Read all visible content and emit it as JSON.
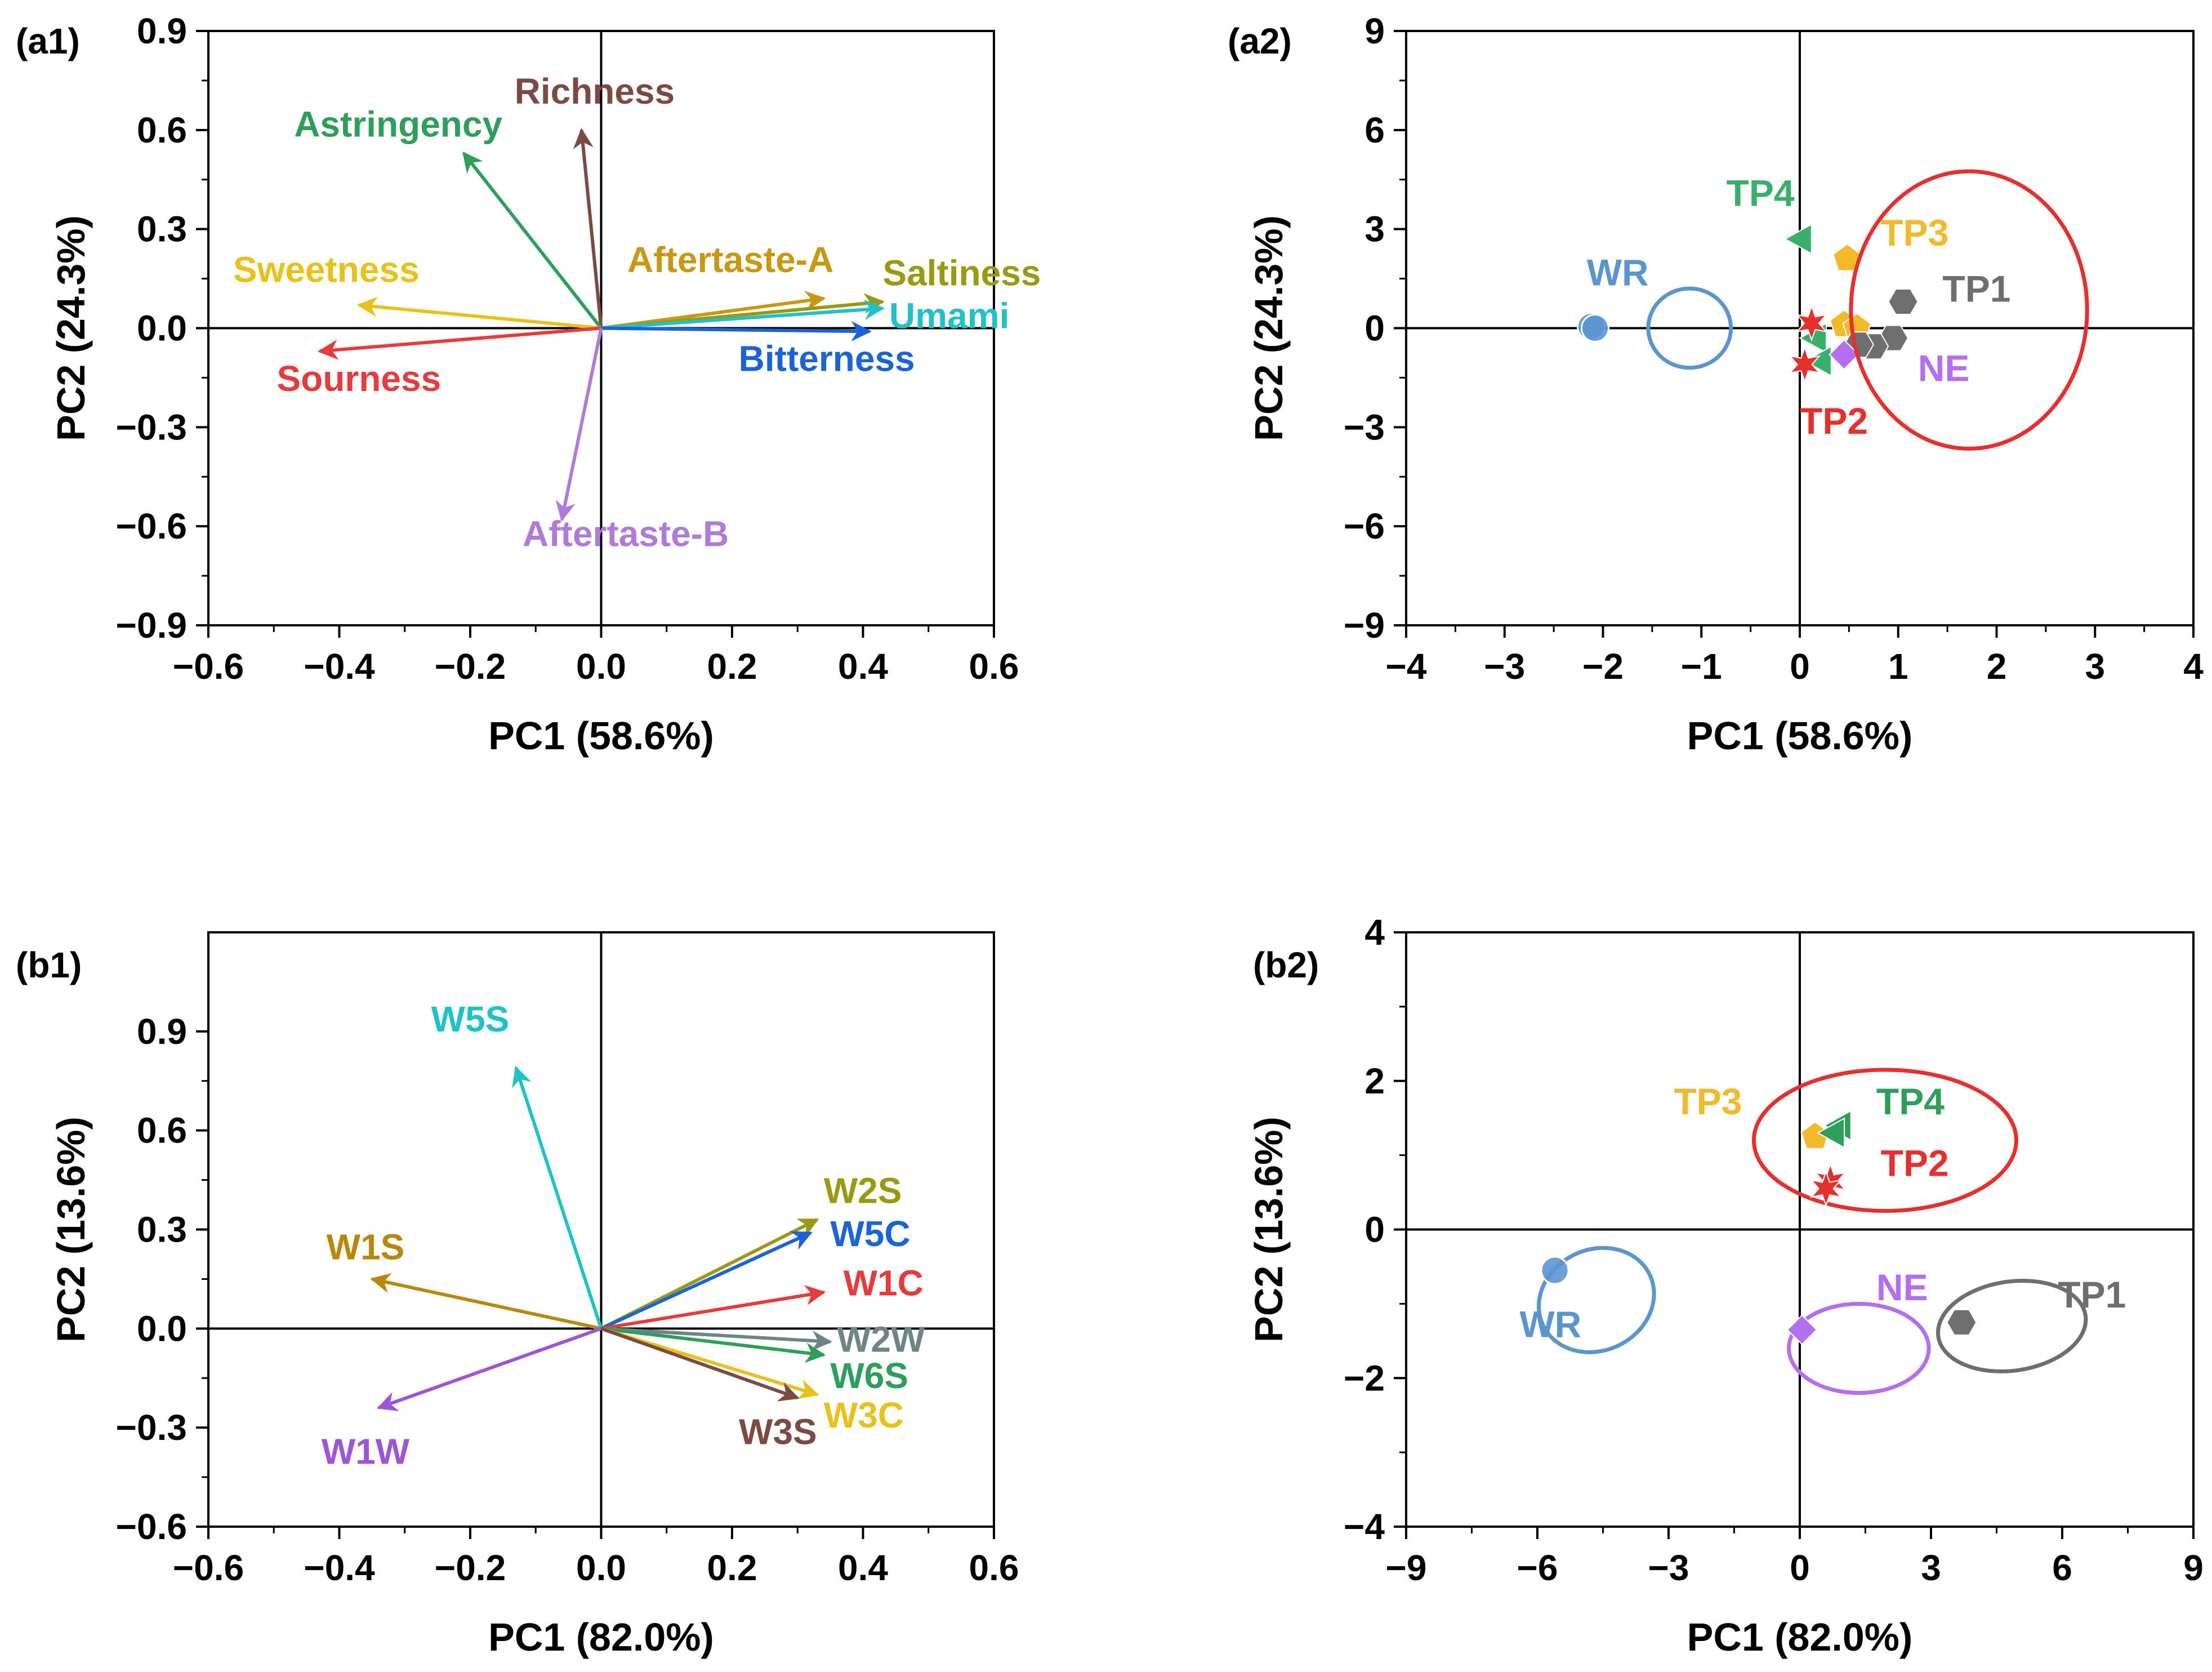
{
  "chart_data": [
    {
      "panel": "(a1)",
      "type": "biplot-loadings",
      "xlabel": "PC1 (58.6%)",
      "ylabel": "PC2 (24.3%)",
      "xlim": [
        -0.6,
        0.6
      ],
      "ylim": [
        -0.9,
        0.9
      ],
      "xticks": [
        -0.6,
        -0.4,
        -0.2,
        0.0,
        0.2,
        0.4,
        0.6
      ],
      "xtick_labels": [
        "−0.6",
        "−0.4",
        "−0.2",
        "0.0",
        "0.2",
        "0.4",
        "0.6"
      ],
      "yticks": [
        -0.9,
        -0.6,
        -0.3,
        0.0,
        0.3,
        0.6,
        0.9
      ],
      "ytick_labels": [
        "−0.9",
        "−0.6",
        "−0.3",
        "0.0",
        "0.3",
        "0.6",
        "0.9"
      ],
      "vectors": [
        {
          "name": "Richness",
          "x": -0.03,
          "y": 0.6,
          "color": "#7b4a42",
          "label_x": -0.01,
          "label_y": 0.68,
          "anchor": "middle"
        },
        {
          "name": "Astringency",
          "x": -0.21,
          "y": 0.53,
          "color": "#2e9e5b",
          "label_x": -0.31,
          "label_y": 0.58,
          "anchor": "middle"
        },
        {
          "name": "Sweetness",
          "x": -0.37,
          "y": 0.07,
          "color": "#e8c21a",
          "label_x": -0.42,
          "label_y": 0.14,
          "anchor": "middle"
        },
        {
          "name": "Sourness",
          "x": -0.43,
          "y": -0.07,
          "color": "#e63b3b",
          "label_x": -0.37,
          "label_y": -0.19,
          "anchor": "middle"
        },
        {
          "name": "Aftertaste-A",
          "x": 0.34,
          "y": 0.09,
          "color": "#c99812",
          "label_x": 0.04,
          "label_y": 0.17,
          "anchor": "start"
        },
        {
          "name": "Saltiness",
          "x": 0.43,
          "y": 0.08,
          "color": "#9a9a12",
          "label_x": 0.43,
          "label_y": 0.13,
          "anchor": "start"
        },
        {
          "name": "Umami",
          "x": 0.43,
          "y": 0.06,
          "color": "#21c1c8",
          "label_x": 0.44,
          "label_y": -0.0,
          "anchor": "start"
        },
        {
          "name": "Bitterness",
          "x": 0.41,
          "y": -0.01,
          "color": "#1a63d8",
          "label_x": 0.21,
          "label_y": -0.13,
          "anchor": "start"
        },
        {
          "name": "Aftertaste-B",
          "x": -0.06,
          "y": -0.58,
          "color": "#b07ad8",
          "label_x": -0.12,
          "label_y": -0.66,
          "anchor": "start"
        }
      ]
    },
    {
      "panel": "(a2)",
      "type": "scatter",
      "xlabel": "PC1 (58.6%)",
      "ylabel": "PC2 (24.3%)",
      "xlim": [
        -4,
        4
      ],
      "ylim": [
        -9,
        9
      ],
      "xticks": [
        -4,
        -3,
        -2,
        -1,
        0,
        1,
        2,
        3,
        4
      ],
      "xtick_labels": [
        "−4",
        "−3",
        "−2",
        "−1",
        "0",
        "1",
        "2",
        "3",
        "4"
      ],
      "yticks": [
        -9,
        -6,
        -3,
        0,
        3,
        6,
        9
      ],
      "yticks_labels": [
        "−9",
        "−6",
        "−3",
        "0",
        "3",
        "6",
        "9"
      ],
      "ytick_labels": [
        "−9",
        "−6",
        "−3",
        "0",
        "3",
        "6",
        "9"
      ],
      "series": [
        {
          "name": "WR",
          "color": "#5b95d0",
          "marker": "circle",
          "points": [
            [
              -2.12,
              0.05
            ],
            [
              -2.08,
              0.0
            ]
          ],
          "label_x": -1.85,
          "label_y": 1.3,
          "anchor": "middle",
          "ellipse": {
            "cx": -1.12,
            "cy": 0.0,
            "rx": 0.42,
            "ry": 1.2,
            "rot": 0
          }
        },
        {
          "name": "TP4",
          "color": "#3aae6b",
          "marker": "triangle-left",
          "points": [
            [
              0.0,
              2.7
            ],
            [
              0.15,
              -0.3
            ],
            [
              0.2,
              -1.0
            ]
          ],
          "label_x": -0.4,
          "label_y": 3.7,
          "anchor": "middle"
        },
        {
          "name": "TP3",
          "color": "#f2b92a",
          "marker": "pentagon",
          "points": [
            [
              0.48,
              2.1
            ],
            [
              0.45,
              0.1
            ],
            [
              0.58,
              0.0
            ]
          ],
          "label_x": 0.82,
          "label_y": 2.5,
          "anchor": "start"
        },
        {
          "name": "TP1",
          "color": "#6e6e6e",
          "marker": "hexagon",
          "points": [
            [
              1.05,
              0.8
            ],
            [
              0.95,
              -0.3
            ],
            [
              0.75,
              -0.55
            ],
            [
              0.6,
              -0.5
            ]
          ],
          "label_x": 1.45,
          "label_y": 0.8,
          "anchor": "start"
        },
        {
          "name": "NE",
          "color": "#b46ff0",
          "marker": "diamond",
          "points": [
            [
              0.45,
              -0.8
            ]
          ],
          "label_x": 1.2,
          "label_y": -1.6,
          "anchor": "start"
        },
        {
          "name": "TP2",
          "color": "#e6302e",
          "marker": "star",
          "points": [
            [
              0.12,
              0.15
            ],
            [
              0.05,
              -1.1
            ]
          ],
          "label_x": 0.0,
          "label_y": -3.2,
          "anchor": "start",
          "ellipse": {
            "cx": 1.72,
            "cy": 0.55,
            "rx": 1.2,
            "ry": 4.2,
            "rot": 0
          }
        }
      ]
    },
    {
      "panel": "(b1)",
      "type": "biplot-loadings",
      "xlabel": "PC1 (82.0%)",
      "ylabel": "PC2 (13.6%)",
      "xlim": [
        -0.6,
        0.6
      ],
      "ylim": [
        -0.6,
        1.2
      ],
      "xticks": [
        -0.6,
        -0.4,
        -0.2,
        0.0,
        0.2,
        0.4,
        0.6
      ],
      "xtick_labels": [
        "−0.6",
        "−0.4",
        "−0.2",
        "0.0",
        "0.2",
        "0.4",
        "0.6"
      ],
      "yticks": [
        -0.6,
        -0.3,
        0.0,
        0.3,
        0.6,
        0.9
      ],
      "ytick_labels": [
        "−0.6",
        "−0.3",
        "0.0",
        "0.3",
        "0.6",
        "0.9"
      ],
      "vectors": [
        {
          "name": "W5S",
          "x": -0.13,
          "y": 0.79,
          "color": "#1ec3c9",
          "label_x": -0.2,
          "label_y": 0.9,
          "anchor": "middle"
        },
        {
          "name": "W1S",
          "x": -0.35,
          "y": 0.15,
          "color": "#b8870b",
          "label_x": -0.36,
          "label_y": 0.21,
          "anchor": "middle"
        },
        {
          "name": "W1W",
          "x": -0.34,
          "y": -0.24,
          "color": "#9b55d6",
          "label_x": -0.36,
          "label_y": -0.41,
          "anchor": "middle"
        },
        {
          "name": "W2S",
          "x": 0.33,
          "y": 0.33,
          "color": "#9a9a12",
          "label_x": 0.34,
          "label_y": 0.38,
          "anchor": "start"
        },
        {
          "name": "W5C",
          "x": 0.32,
          "y": 0.29,
          "color": "#1a63d8",
          "label_x": 0.35,
          "label_y": 0.25,
          "anchor": "start"
        },
        {
          "name": "W1C",
          "x": 0.34,
          "y": 0.11,
          "color": "#e63b3b",
          "label_x": 0.37,
          "label_y": 0.1,
          "anchor": "start"
        },
        {
          "name": "W2W",
          "x": 0.35,
          "y": -0.04,
          "color": "#6e8585",
          "label_x": 0.36,
          "label_y": -0.07,
          "anchor": "start"
        },
        {
          "name": "W6S",
          "x": 0.34,
          "y": -0.08,
          "color": "#2e9e5b",
          "label_x": 0.35,
          "label_y": -0.18,
          "anchor": "start"
        },
        {
          "name": "W3C",
          "x": 0.33,
          "y": -0.2,
          "color": "#e8c21a",
          "label_x": 0.34,
          "label_y": -0.3,
          "anchor": "start"
        },
        {
          "name": "W3S",
          "x": 0.3,
          "y": -0.21,
          "color": "#7b4a42",
          "label_x": 0.27,
          "label_y": -0.35,
          "anchor": "middle"
        }
      ]
    },
    {
      "panel": "(b2)",
      "type": "scatter",
      "xlabel": "PC1 (82.0%)",
      "ylabel": "PC2 (13.6%)",
      "xlim": [
        -9,
        9
      ],
      "ylim": [
        -4,
        4
      ],
      "xticks": [
        -9,
        -6,
        -3,
        0,
        3,
        6,
        9
      ],
      "xtick_labels": [
        "−9",
        "−6",
        "−3",
        "0",
        "3",
        "6",
        "9"
      ],
      "yticks": [
        -4,
        -2,
        0,
        2,
        4
      ],
      "ytick_labels": [
        "−4",
        "−2",
        "0",
        "2",
        "4"
      ],
      "series": [
        {
          "name": "WR",
          "color": "#5b95d0",
          "marker": "circle",
          "points": [
            [
              -5.6,
              -0.55
            ]
          ],
          "label_x": -5.7,
          "label_y": -1.45,
          "anchor": "middle",
          "ellipse": {
            "cx": -4.65,
            "cy": -0.95,
            "rx": 1.35,
            "ry": 0.68,
            "rot": 25
          }
        },
        {
          "name": "TP3",
          "color": "#f2b92a",
          "marker": "pentagon",
          "points": [
            [
              0.35,
              1.25
            ]
          ],
          "label_x": -2.1,
          "label_y": 1.55,
          "anchor": "middle"
        },
        {
          "name": "TP4",
          "color": "#2e9e5b",
          "marker": "triangle-left",
          "points": [
            [
              0.9,
              1.4
            ],
            [
              0.75,
              1.3
            ]
          ],
          "label_x": 1.75,
          "label_y": 1.55,
          "anchor": "start"
        },
        {
          "name": "TP2",
          "color": "#e6302e",
          "marker": "star",
          "points": [
            [
              0.7,
              0.65
            ],
            [
              0.6,
              0.55
            ]
          ],
          "label_x": 1.85,
          "label_y": 0.72,
          "anchor": "start",
          "ellipse": {
            "cx": 1.95,
            "cy": 1.2,
            "rx": 3.0,
            "ry": 0.95,
            "rot": 0
          }
        },
        {
          "name": "NE",
          "color": "#b46ff0",
          "marker": "diamond",
          "points": [
            [
              0.05,
              -1.35
            ]
          ],
          "label_x": 1.75,
          "label_y": -0.95,
          "anchor": "start",
          "ellipse": {
            "cx": 1.35,
            "cy": -1.6,
            "rx": 1.6,
            "ry": 0.6,
            "rot": 0
          }
        },
        {
          "name": "TP1",
          "color": "#6e6e6e",
          "marker": "hexagon",
          "points": [
            [
              3.7,
              -1.25
            ]
          ],
          "label_x": 5.9,
          "label_y": -1.05,
          "anchor": "start",
          "ellipse": {
            "cx": 4.85,
            "cy": -1.3,
            "rx": 1.7,
            "ry": 0.6,
            "rot": 8
          }
        }
      ]
    }
  ],
  "labels": {
    "a1": "(a1)",
    "a2": "(a2)",
    "b1": "(b1)",
    "b2": "(b2)"
  }
}
